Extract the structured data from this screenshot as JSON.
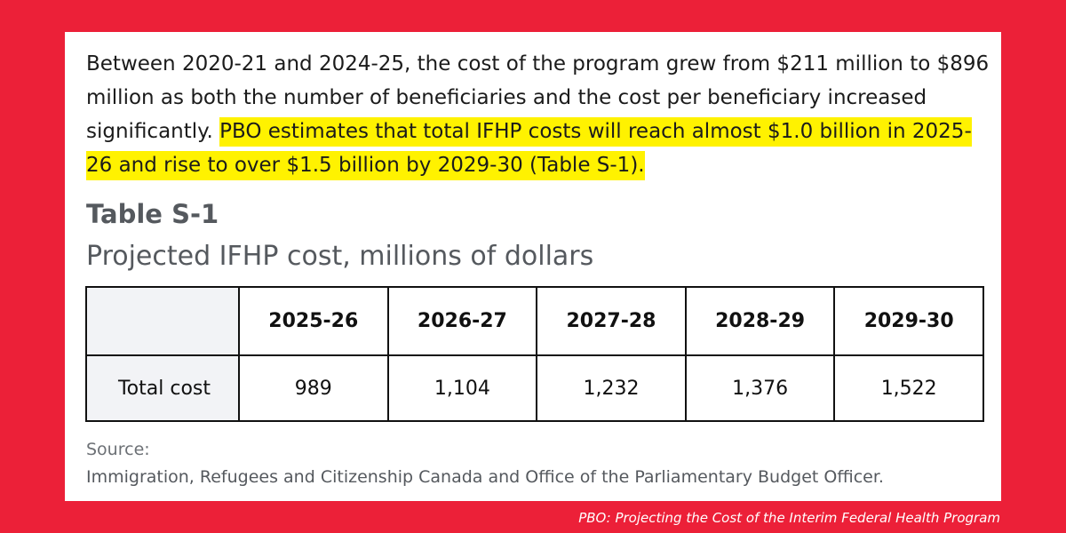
{
  "paragraph": {
    "text_plain": "Between 2020-21 and 2024-25, the cost of the program grew from $211 million to $896 million as both the number of beneficiaries and the cost per beneficiary increased significantly. ",
    "text_highlighted": "PBO estimates that total IFHP costs will reach almost $1.0 billion in 2025-26 and rise to over $1.5 billion by 2029-30 (Table S-1).",
    "highlight_color": "#fff200"
  },
  "table": {
    "label": "Table S-1",
    "title": "Projected IFHP cost, millions of dollars",
    "columns": [
      "2025-26",
      "2026-27",
      "2027-28",
      "2028-29",
      "2029-30"
    ],
    "rows": [
      {
        "label": "Total cost",
        "values": [
          "989",
          "1,104",
          "1,232",
          "1,376",
          "1,522"
        ]
      }
    ]
  },
  "chart_data": {
    "type": "table",
    "title": "Projected IFHP cost, millions of dollars",
    "categories": [
      "2025-26",
      "2026-27",
      "2027-28",
      "2028-29",
      "2029-30"
    ],
    "series": [
      {
        "name": "Total cost",
        "values": [
          989,
          1104,
          1232,
          1376,
          1522
        ]
      }
    ]
  },
  "source": {
    "label": "Source:",
    "text": "Immigration, Refugees and Citizenship Canada and Office of the Parliamentary Budget Officer."
  },
  "caption": "PBO: Projecting the Cost of the Interim Federal Health Program",
  "colors": {
    "background": "#ec2038",
    "card": "#ffffff",
    "highlight": "#fff200",
    "heading": "#55595e"
  }
}
